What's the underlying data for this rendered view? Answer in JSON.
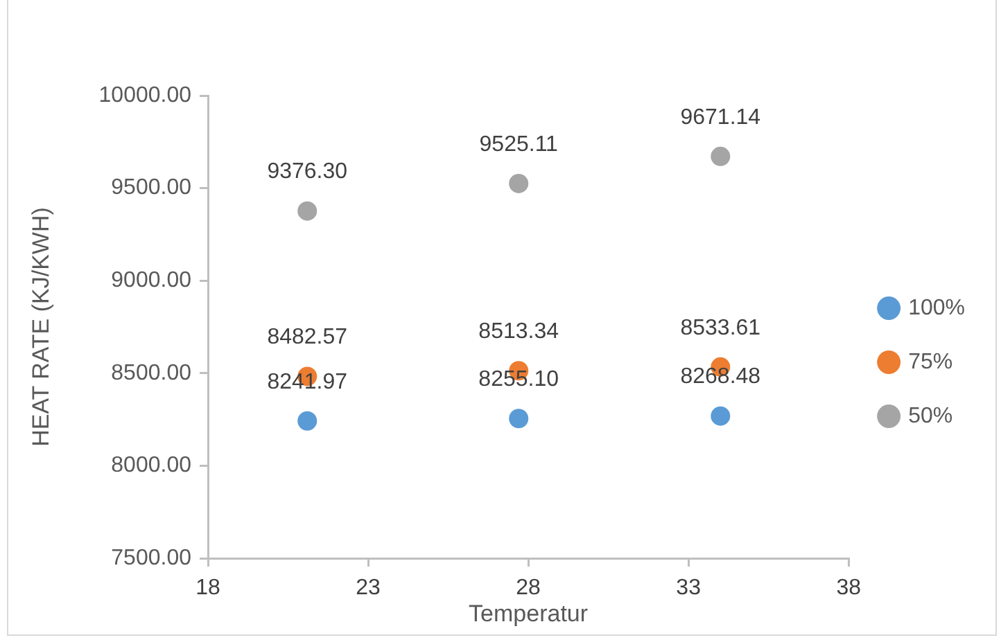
{
  "chart_data": {
    "type": "scatter",
    "xlabel": "Temperatur",
    "ylabel": "HEAT RATE (KJ/KWH)",
    "x": [
      21.1,
      27.7,
      34
    ],
    "series": [
      {
        "name": "100%",
        "color": "#5b9bd5",
        "values": [
          8241.97,
          8255.1,
          8268.48
        ],
        "value_labels": [
          "8241.97",
          "8255.10",
          "8268.48"
        ]
      },
      {
        "name": "75%",
        "color": "#ed7d31",
        "values": [
          8482.57,
          8513.34,
          8533.61
        ],
        "value_labels": [
          "8482.57",
          "8513.34",
          "8533.61"
        ]
      },
      {
        "name": "50%",
        "color": "#a5a5a5",
        "values": [
          9376.3,
          9525.11,
          9671.14
        ],
        "value_labels": [
          "9376.30",
          "9525.11",
          "9671.14"
        ]
      }
    ],
    "xlim": [
      18,
      38
    ],
    "xticks": [
      18,
      23,
      28,
      33,
      38
    ],
    "ylim": [
      7500,
      10000
    ],
    "yticks": [
      {
        "value": 7500,
        "label": "7500.00"
      },
      {
        "value": 8000,
        "label": "8000.00"
      },
      {
        "value": 8500,
        "label": "8500.00"
      },
      {
        "value": 9000,
        "label": "9000.00"
      },
      {
        "value": 9500,
        "label": "9500.00"
      },
      {
        "value": 10000,
        "label": "10000.00"
      }
    ],
    "legend": "right",
    "marker": "circle"
  }
}
